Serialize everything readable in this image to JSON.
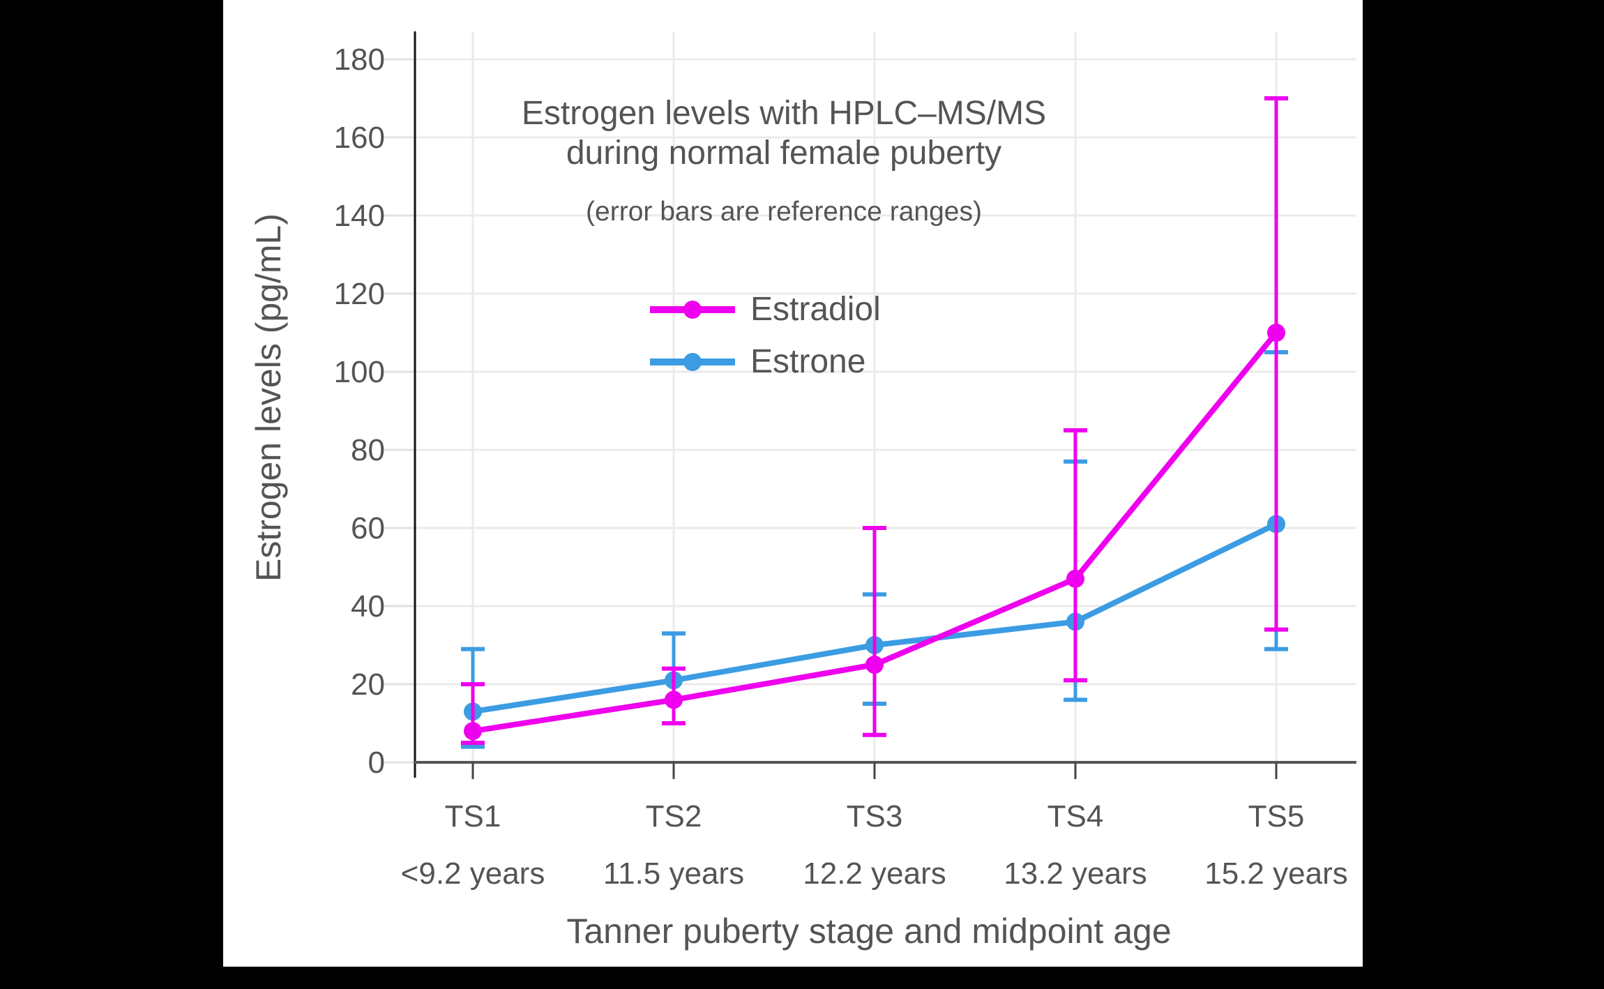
{
  "chart_data": {
    "type": "line",
    "title": "Estrogen levels with HPLC–MS/MS",
    "title_line2": "during normal female puberty",
    "subtitle": "(error bars are reference ranges)",
    "xlabel": "Tanner puberty stage and midpoint age",
    "ylabel": "Estrogen levels (pg/mL)",
    "categories": [
      {
        "stage": "TS1",
        "age": "<9.2 years"
      },
      {
        "stage": "TS2",
        "age": "11.5 years"
      },
      {
        "stage": "TS3",
        "age": "12.2 years"
      },
      {
        "stage": "TS4",
        "age": "13.2 years"
      },
      {
        "stage": "TS5",
        "age": "15.2 years"
      }
    ],
    "y_ticks": [
      0,
      20,
      40,
      60,
      80,
      100,
      120,
      140,
      160,
      180
    ],
    "ylim": [
      0,
      187
    ],
    "grid": true,
    "legend_position": "inside-top-center",
    "error_bars_meaning": "reference ranges",
    "series": [
      {
        "name": "Estradiol",
        "color": "#EE00EE",
        "values": [
          8,
          16,
          25,
          47,
          110
        ],
        "error_low": [
          5,
          10,
          7,
          21,
          34
        ],
        "error_high": [
          20,
          24,
          60,
          85,
          170
        ]
      },
      {
        "name": "Estrone",
        "color": "#3B9CE3",
        "values": [
          13,
          21,
          30,
          36,
          61
        ],
        "error_low": [
          4,
          10,
          15,
          16,
          29
        ],
        "error_high": [
          29,
          33,
          43,
          77,
          105
        ]
      }
    ]
  },
  "colors": {
    "background": "#000000",
    "panel": "#ffffff",
    "text": "#545454",
    "gridline": "#EBEBEB",
    "outer_tick": "#E2E2E2",
    "y_axis_line": "#111111",
    "x_axis_line": "#555555",
    "x_tick": "#444444"
  }
}
